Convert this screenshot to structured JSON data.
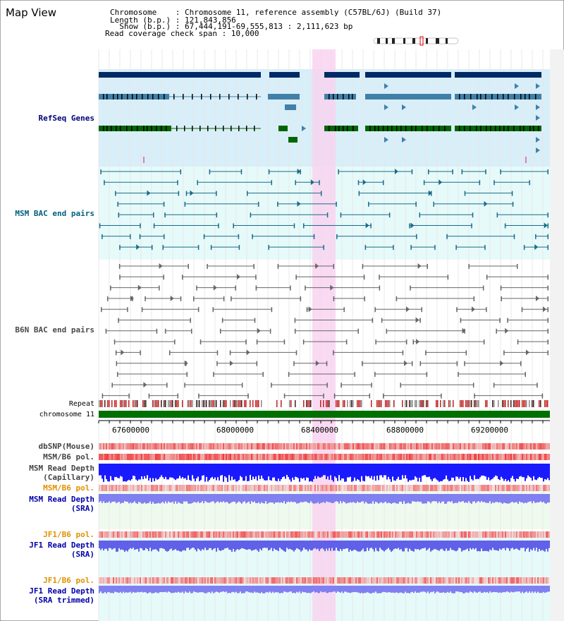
{
  "view": {
    "title": "Map View",
    "info_lines": [
      "Chromosome    : Chromosome 11, reference assembly (C57BL/6J) (Build 37)",
      "Length (b.p.) : 121,843,856",
      "  Show (b.p.) : 67,444,191-69,555,813 : 2,111,623 bp",
      "Read coverage check span : 10,000"
    ]
  },
  "tracks": {
    "refseq": {
      "label": "RefSeq Genes",
      "color": "#00007a"
    },
    "msm_bac": {
      "label": "MSM BAC end pairs",
      "color": "#006080"
    },
    "b6n_bac": {
      "label": "B6N BAC end pairs",
      "color": "#4a4a4a"
    },
    "repeat": {
      "label": "Repeat"
    },
    "chromosome": {
      "label": "chromosome 11"
    },
    "dbsnp": {
      "label": "dbSNP(Mouse)"
    },
    "msm_b6_pol_1": {
      "label": "MSM/B6 pol."
    },
    "msm_depth_cap": {
      "label": "MSM Read Depth\n(Capillary)"
    },
    "msm_b6_pol_2": {
      "label": "MSM/B6 pol."
    },
    "msm_depth_sra": {
      "label": "MSM Read Depth\n(SRA)"
    },
    "jf1_b6_pol_1": {
      "label": "JF1/B6 pol."
    },
    "jf1_depth_sra": {
      "label": "JF1 Read Depth\n(SRA)"
    },
    "jf1_b6_pol_2": {
      "label": "JF1/B6 pol."
    },
    "jf1_depth_trim": {
      "label": "JF1 Read Depth\n(SRA trimmed)"
    }
  },
  "axis": {
    "ticks": [
      "67600000",
      "68000000",
      "68400000",
      "68800000",
      "69200000"
    ]
  },
  "colors": {
    "refseq_bg": "#d8eef8",
    "msm_bg": "#e6fafa",
    "highlight": "#f8d4f0",
    "chromosome": "#007000",
    "depth_blue": "#1a1aff",
    "depth_light": "#8080f0",
    "pol_red": "#ee3333"
  }
}
